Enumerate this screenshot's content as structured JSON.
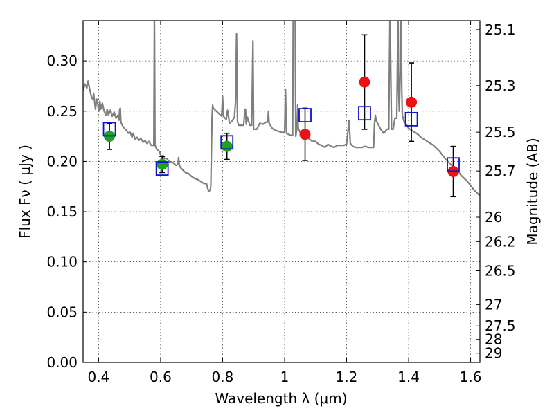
{
  "chart_data": {
    "type": "scatter",
    "xlabel": "Wavelength  λ (μm)",
    "ylabel": "Flux  Fν  ( μJy )",
    "ylabel_right": "Magnitude (AB)",
    "xlim": [
      0.35,
      1.63
    ],
    "ylim": [
      0.0,
      0.34
    ],
    "grid": true,
    "x_ticks": [
      0.4,
      0.6,
      0.8,
      1.0,
      1.2,
      1.4,
      1.6
    ],
    "x_tick_labels": [
      "0.4",
      "0.6",
      "0.8",
      "1",
      "1.2",
      "1.4",
      "1.6"
    ],
    "y_ticks": [
      0.0,
      0.05,
      0.1,
      0.15,
      0.2,
      0.25,
      0.3
    ],
    "y_tick_labels": [
      "0.00",
      "0.05",
      "0.10",
      "0.15",
      "0.20",
      "0.25",
      "0.30"
    ],
    "right_ticks": [
      {
        "label": "25.1",
        "value": 25.1
      },
      {
        "label": "25.3",
        "value": 25.3
      },
      {
        "label": "25.5",
        "value": 25.5
      },
      {
        "label": "25.7",
        "value": 25.7
      },
      {
        "label": "26",
        "value": 26.0
      },
      {
        "label": "26.2",
        "value": 26.2
      },
      {
        "label": "26.5",
        "value": 26.5
      },
      {
        "label": "27",
        "value": 27.0
      },
      {
        "label": "27.5",
        "value": 27.5
      },
      {
        "label": "28",
        "value": 28.0
      },
      {
        "label": "29",
        "value": 29.0
      }
    ],
    "colors": {
      "sed": "#7f7f7f",
      "green": "#1fa31f",
      "red": "#ee1111",
      "model_box": "#1111cc",
      "errorbar": "#000000"
    },
    "series": [
      {
        "kind": "line",
        "points": [
          [
            0.35,
            0.271
          ],
          [
            0.356,
            0.277
          ],
          [
            0.362,
            0.273
          ],
          [
            0.366,
            0.28
          ],
          [
            0.372,
            0.271
          ],
          [
            0.378,
            0.263
          ],
          [
            0.382,
            0.262
          ],
          [
            0.384,
            0.268
          ],
          [
            0.39,
            0.252
          ],
          [
            0.394,
            0.262
          ],
          [
            0.398,
            0.256
          ],
          [
            0.401,
            0.25
          ],
          [
            0.404,
            0.26
          ],
          [
            0.407,
            0.252
          ],
          [
            0.412,
            0.258
          ],
          [
            0.418,
            0.25
          ],
          [
            0.424,
            0.246
          ],
          [
            0.428,
            0.252
          ],
          [
            0.432,
            0.246
          ],
          [
            0.438,
            0.251
          ],
          [
            0.444,
            0.245
          ],
          [
            0.45,
            0.249
          ],
          [
            0.456,
            0.243
          ],
          [
            0.462,
            0.246
          ],
          [
            0.466,
            0.241
          ],
          [
            0.468,
            0.252
          ],
          [
            0.47,
            0.253
          ],
          [
            0.472,
            0.239
          ],
          [
            0.478,
            0.235
          ],
          [
            0.486,
            0.232
          ],
          [
            0.49,
            0.231
          ],
          [
            0.496,
            0.228
          ],
          [
            0.502,
            0.229
          ],
          [
            0.508,
            0.224
          ],
          [
            0.512,
            0.228
          ],
          [
            0.518,
            0.222
          ],
          [
            0.524,
            0.224
          ],
          [
            0.53,
            0.221
          ],
          [
            0.536,
            0.223
          ],
          [
            0.544,
            0.219
          ],
          [
            0.55,
            0.221
          ],
          [
            0.556,
            0.218
          ],
          [
            0.562,
            0.22
          ],
          [
            0.57,
            0.216
          ],
          [
            0.575,
            0.216
          ],
          [
            0.578,
            0.216
          ],
          [
            0.58,
            0.352
          ],
          [
            0.582,
            0.216
          ],
          [
            0.588,
            0.212
          ],
          [
            0.596,
            0.21
          ],
          [
            0.602,
            0.205
          ],
          [
            0.608,
            0.206
          ],
          [
            0.612,
            0.203
          ],
          [
            0.62,
            0.203
          ],
          [
            0.63,
            0.199
          ],
          [
            0.64,
            0.199
          ],
          [
            0.65,
            0.196
          ],
          [
            0.656,
            0.197
          ],
          [
            0.658,
            0.204
          ],
          [
            0.66,
            0.197
          ],
          [
            0.664,
            0.194
          ],
          [
            0.67,
            0.192
          ],
          [
            0.68,
            0.189
          ],
          [
            0.69,
            0.188
          ],
          [
            0.7,
            0.185
          ],
          [
            0.71,
            0.183
          ],
          [
            0.72,
            0.182
          ],
          [
            0.73,
            0.18
          ],
          [
            0.74,
            0.178
          ],
          [
            0.748,
            0.178
          ],
          [
            0.752,
            0.173
          ],
          [
            0.756,
            0.17
          ],
          [
            0.76,
            0.172
          ],
          [
            0.762,
            0.175
          ],
          [
            0.764,
            0.21
          ],
          [
            0.766,
            0.245
          ],
          [
            0.768,
            0.256
          ],
          [
            0.77,
            0.253
          ],
          [
            0.78,
            0.25
          ],
          [
            0.79,
            0.247
          ],
          [
            0.797,
            0.245
          ],
          [
            0.8,
            0.265
          ],
          [
            0.803,
            0.245
          ],
          [
            0.808,
            0.243
          ],
          [
            0.812,
            0.242
          ],
          [
            0.816,
            0.251
          ],
          [
            0.818,
            0.248
          ],
          [
            0.822,
            0.238
          ],
          [
            0.83,
            0.24
          ],
          [
            0.838,
            0.244
          ],
          [
            0.842,
            0.26
          ],
          [
            0.845,
            0.327
          ],
          [
            0.848,
            0.24
          ],
          [
            0.852,
            0.236
          ],
          [
            0.86,
            0.236
          ],
          [
            0.868,
            0.236
          ],
          [
            0.872,
            0.252
          ],
          [
            0.874,
            0.252
          ],
          [
            0.876,
            0.237
          ],
          [
            0.88,
            0.244
          ],
          [
            0.884,
            0.24
          ],
          [
            0.888,
            0.236
          ],
          [
            0.894,
            0.236
          ],
          [
            0.898,
            0.32
          ],
          [
            0.9,
            0.232
          ],
          [
            0.91,
            0.232
          ],
          [
            0.92,
            0.238
          ],
          [
            0.93,
            0.237
          ],
          [
            0.94,
            0.239
          ],
          [
            0.945,
            0.239
          ],
          [
            0.948,
            0.25
          ],
          [
            0.95,
            0.238
          ],
          [
            0.96,
            0.233
          ],
          [
            0.97,
            0.231
          ],
          [
            0.98,
            0.23
          ],
          [
            0.99,
            0.229
          ],
          [
            1.0,
            0.229
          ],
          [
            1.003,
            0.272
          ],
          [
            1.006,
            0.228
          ],
          [
            1.012,
            0.227
          ],
          [
            1.02,
            0.226
          ],
          [
            1.026,
            0.226
          ],
          [
            1.028,
            0.352
          ],
          [
            1.034,
            0.352
          ],
          [
            1.036,
            0.225
          ],
          [
            1.04,
            0.233
          ],
          [
            1.042,
            0.256
          ],
          [
            1.044,
            0.233
          ],
          [
            1.05,
            0.229
          ],
          [
            1.06,
            0.226
          ],
          [
            1.07,
            0.226
          ],
          [
            1.08,
            0.222
          ],
          [
            1.09,
            0.22
          ],
          [
            1.1,
            0.22
          ],
          [
            1.11,
            0.217
          ],
          [
            1.12,
            0.216
          ],
          [
            1.13,
            0.214
          ],
          [
            1.14,
            0.217
          ],
          [
            1.15,
            0.215
          ],
          [
            1.16,
            0.214
          ],
          [
            1.17,
            0.216
          ],
          [
            1.18,
            0.216
          ],
          [
            1.19,
            0.216
          ],
          [
            1.2,
            0.217
          ],
          [
            1.208,
            0.241
          ],
          [
            1.212,
            0.218
          ],
          [
            1.22,
            0.215
          ],
          [
            1.23,
            0.214
          ],
          [
            1.24,
            0.214
          ],
          [
            1.25,
            0.214
          ],
          [
            1.26,
            0.215
          ],
          [
            1.27,
            0.214
          ],
          [
            1.28,
            0.214
          ],
          [
            1.287,
            0.214
          ],
          [
            1.29,
            0.238
          ],
          [
            1.293,
            0.246
          ],
          [
            1.296,
            0.24
          ],
          [
            1.3,
            0.238
          ],
          [
            1.31,
            0.232
          ],
          [
            1.32,
            0.228
          ],
          [
            1.33,
            0.232
          ],
          [
            1.336,
            0.232
          ],
          [
            1.34,
            0.352
          ],
          [
            1.345,
            0.232
          ],
          [
            1.35,
            0.232
          ],
          [
            1.356,
            0.243
          ],
          [
            1.362,
            0.243
          ],
          [
            1.366,
            0.352
          ],
          [
            1.368,
            0.27
          ],
          [
            1.37,
            0.25
          ],
          [
            1.374,
            0.3
          ],
          [
            1.376,
            0.352
          ],
          [
            1.378,
            0.27
          ],
          [
            1.38,
            0.246
          ],
          [
            1.385,
            0.24
          ],
          [
            1.39,
            0.238
          ],
          [
            1.4,
            0.233
          ],
          [
            1.41,
            0.231
          ],
          [
            1.42,
            0.229
          ],
          [
            1.43,
            0.227
          ],
          [
            1.44,
            0.224
          ],
          [
            1.45,
            0.222
          ],
          [
            1.46,
            0.22
          ],
          [
            1.47,
            0.218
          ],
          [
            1.48,
            0.216
          ],
          [
            1.49,
            0.213
          ],
          [
            1.5,
            0.21
          ],
          [
            1.51,
            0.206
          ],
          [
            1.52,
            0.202
          ],
          [
            1.53,
            0.199
          ],
          [
            1.54,
            0.196
          ],
          [
            1.55,
            0.193
          ],
          [
            1.56,
            0.19
          ],
          [
            1.57,
            0.186
          ],
          [
            1.58,
            0.183
          ],
          [
            1.59,
            0.18
          ],
          [
            1.6,
            0.176
          ],
          [
            1.61,
            0.172
          ],
          [
            1.62,
            0.169
          ],
          [
            1.63,
            0.166
          ]
        ]
      },
      {
        "kind": "observed",
        "points": [
          {
            "x": 0.435,
            "y": 0.225,
            "err": 0.013,
            "color": "green"
          },
          {
            "x": 0.605,
            "y": 0.197,
            "err": 0.008,
            "color": "green"
          },
          {
            "x": 0.814,
            "y": 0.215,
            "err": 0.013,
            "color": "green"
          },
          {
            "x": 1.066,
            "y": 0.227,
            "err": 0.026,
            "color": "red"
          },
          {
            "x": 1.258,
            "y": 0.279,
            "err": 0.047,
            "color": "red"
          },
          {
            "x": 1.409,
            "y": 0.259,
            "err": 0.039,
            "color": "red"
          },
          {
            "x": 1.544,
            "y": 0.19,
            "err": 0.025,
            "color": "red"
          }
        ]
      },
      {
        "kind": "model",
        "points": [
          {
            "x": 0.435,
            "y": 0.232
          },
          {
            "x": 0.605,
            "y": 0.193
          },
          {
            "x": 0.814,
            "y": 0.219
          },
          {
            "x": 1.066,
            "y": 0.246
          },
          {
            "x": 1.258,
            "y": 0.248
          },
          {
            "x": 1.409,
            "y": 0.242
          },
          {
            "x": 1.544,
            "y": 0.197
          }
        ]
      }
    ]
  }
}
